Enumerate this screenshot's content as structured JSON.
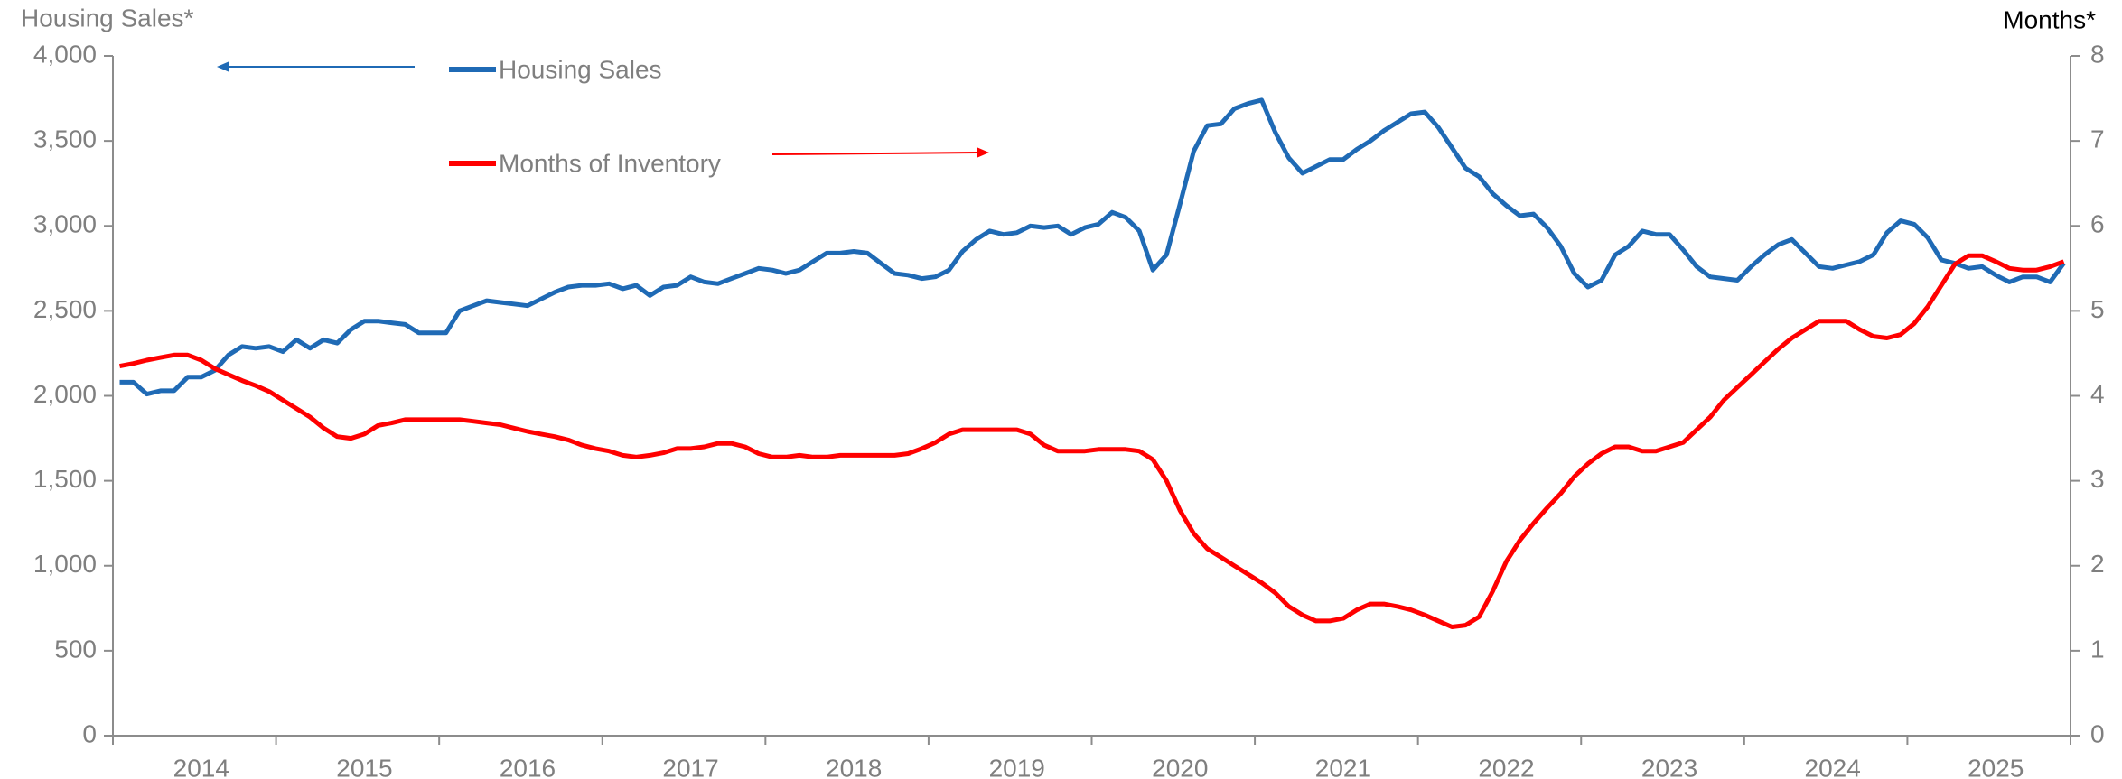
{
  "chart_data": {
    "type": "line",
    "y_label": "Housing Sales*",
    "y2_label": "Months*",
    "categories": [
      null,
      null,
      null,
      null,
      null,
      null,
      "2014",
      null,
      null,
      null,
      null,
      null,
      null,
      null,
      null,
      null,
      null,
      null,
      "2015",
      null,
      null,
      null,
      null,
      null,
      null,
      null,
      null,
      null,
      null,
      null,
      "2016",
      null,
      null,
      null,
      null,
      null,
      null,
      null,
      null,
      null,
      null,
      null,
      "2017",
      null,
      null,
      null,
      null,
      null,
      null,
      null,
      null,
      null,
      null,
      null,
      "2018",
      null,
      null,
      null,
      null,
      null,
      null,
      null,
      null,
      null,
      null,
      null,
      "2019",
      null,
      null,
      null,
      null,
      null,
      null,
      null,
      null,
      null,
      null,
      null,
      "2020",
      null,
      null,
      null,
      null,
      null,
      null,
      null,
      null,
      null,
      null,
      null,
      "2021",
      null,
      null,
      null,
      null,
      null,
      null,
      null,
      null,
      null,
      null,
      null,
      "2022",
      null,
      null,
      null,
      null,
      null,
      null,
      null,
      null,
      null,
      null,
      null,
      "2023",
      null,
      null,
      null,
      null,
      null,
      null,
      null,
      null,
      null,
      null,
      null,
      "2024",
      null,
      null,
      null,
      null,
      null,
      null,
      null,
      null,
      null,
      null,
      null,
      "2025",
      null,
      null,
      null,
      null,
      null
    ],
    "series": [
      {
        "name": "Housing Sales",
        "color": "#1f6ab5",
        "axis": "y",
        "values": [
          2080,
          2080,
          2010,
          2030,
          2030,
          2110,
          2110,
          2150,
          2240,
          2290,
          2280,
          2290,
          2260,
          2330,
          2280,
          2330,
          2310,
          2390,
          2440,
          2440,
          2430,
          2420,
          2370,
          2370,
          2370,
          2500,
          2530,
          2560,
          2550,
          2540,
          2530,
          2570,
          2610,
          2640,
          2650,
          2650,
          2660,
          2630,
          2650,
          2590,
          2640,
          2650,
          2700,
          2670,
          2660,
          2690,
          2720,
          2750,
          2740,
          2720,
          2740,
          2790,
          2840,
          2840,
          2850,
          2840,
          2780,
          2720,
          2710,
          2690,
          2700,
          2740,
          2850,
          2920,
          2970,
          2950,
          2960,
          3000,
          2990,
          3000,
          2950,
          2990,
          3010,
          3080,
          3050,
          2970,
          2740,
          2830,
          3130,
          3440,
          3590,
          3600,
          3690,
          3720,
          3740,
          3550,
          3400,
          3310,
          3350,
          3390,
          3390,
          3450,
          3500,
          3560,
          3610,
          3660,
          3670,
          3580,
          3460,
          3340,
          3290,
          3190,
          3120,
          3060,
          3070,
          2990,
          2880,
          2720,
          2640,
          2680,
          2830,
          2880,
          2970,
          2950,
          2950,
          2860,
          2760,
          2700,
          2690,
          2680,
          2760,
          2830,
          2890,
          2920,
          2840,
          2760,
          2750,
          2770,
          2790,
          2830,
          2960,
          3030,
          3010,
          2930,
          2800,
          2780,
          2750,
          2760,
          2710,
          2670,
          2700,
          2700,
          2670,
          2780
        ]
      },
      {
        "name": "Months of Inventory",
        "color": "#ff0000",
        "axis": "y2",
        "values": [
          4.35,
          4.38,
          4.42,
          4.45,
          4.48,
          4.48,
          4.42,
          4.32,
          4.25,
          4.18,
          4.12,
          4.05,
          3.95,
          3.85,
          3.75,
          3.62,
          3.52,
          3.5,
          3.55,
          3.65,
          3.68,
          3.72,
          3.72,
          3.72,
          3.72,
          3.72,
          3.7,
          3.68,
          3.66,
          3.62,
          3.58,
          3.55,
          3.52,
          3.48,
          3.42,
          3.38,
          3.35,
          3.3,
          3.28,
          3.3,
          3.33,
          3.38,
          3.38,
          3.4,
          3.44,
          3.44,
          3.4,
          3.32,
          3.28,
          3.28,
          3.3,
          3.28,
          3.28,
          3.3,
          3.3,
          3.3,
          3.3,
          3.3,
          3.32,
          3.38,
          3.45,
          3.55,
          3.6,
          3.6,
          3.6,
          3.6,
          3.6,
          3.55,
          3.42,
          3.35,
          3.35,
          3.35,
          3.37,
          3.37,
          3.37,
          3.35,
          3.25,
          3.0,
          2.65,
          2.38,
          2.2,
          2.1,
          2.0,
          1.9,
          1.8,
          1.68,
          1.52,
          1.42,
          1.35,
          1.35,
          1.38,
          1.48,
          1.55,
          1.55,
          1.52,
          1.48,
          1.42,
          1.35,
          1.28,
          1.3,
          1.4,
          1.7,
          2.05,
          2.3,
          2.5,
          2.68,
          2.85,
          3.05,
          3.2,
          3.32,
          3.4,
          3.4,
          3.35,
          3.35,
          3.4,
          3.45,
          3.6,
          3.75,
          3.95,
          4.1,
          4.25,
          4.4,
          4.55,
          4.68,
          4.78,
          4.88,
          4.88,
          4.88,
          4.78,
          4.7,
          4.68,
          4.72,
          4.85,
          5.05,
          5.3,
          5.55,
          5.65,
          5.65,
          5.58,
          5.5,
          5.48,
          5.48,
          5.52,
          5.58
        ]
      }
    ],
    "ylim": [
      0,
      4000
    ],
    "yticks": [
      0,
      500,
      {
        "value": 1000,
        "label": "1,000"
      },
      {
        "value": 1500,
        "label": "1,500"
      },
      {
        "value": 2000,
        "label": "2,000"
      },
      {
        "value": 2500,
        "label": "2,500"
      },
      {
        "value": 3000,
        "label": "3,000"
      },
      {
        "value": 3500,
        "label": "3,500"
      },
      {
        "value": 4000,
        "label": "4,000"
      }
    ],
    "y2lim": [
      0,
      8
    ],
    "y2ticks": [
      0,
      1,
      2,
      3,
      4,
      5,
      6,
      7,
      8
    ],
    "grid": false
  }
}
